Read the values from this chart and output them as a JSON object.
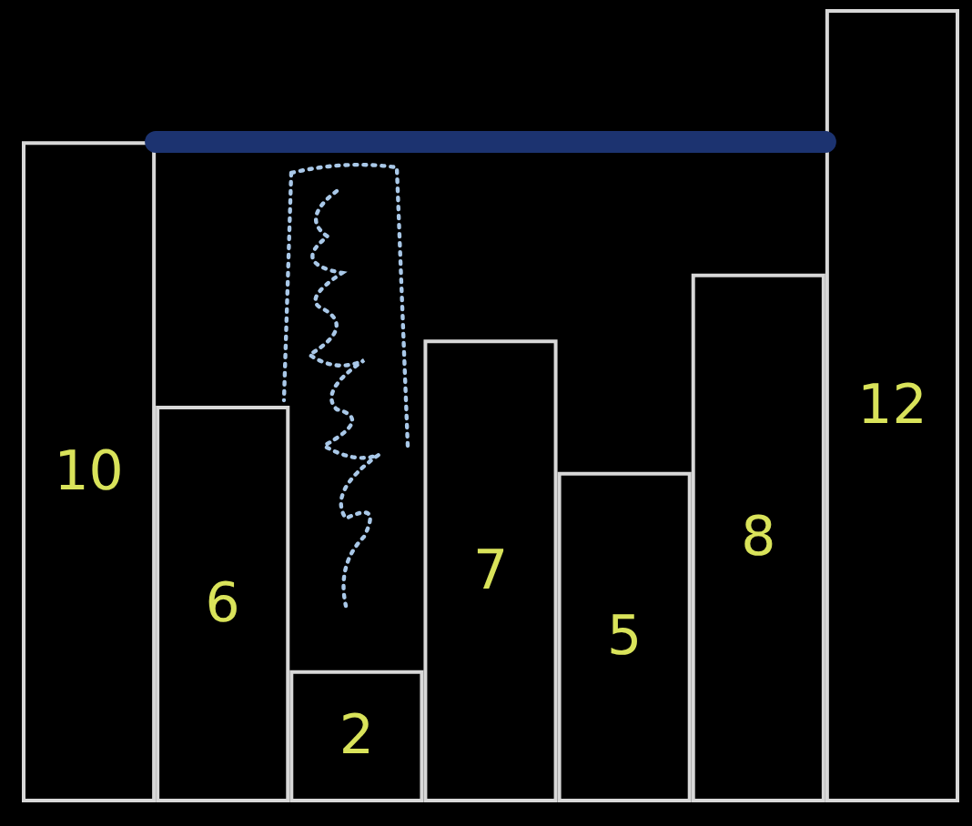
{
  "chart_data": {
    "type": "bar",
    "categories": [
      null,
      null,
      null,
      null,
      null,
      null,
      null
    ],
    "values": [
      10,
      6,
      2,
      7,
      5,
      8,
      12
    ],
    "color": "#000000",
    "data_labels": true,
    "ylim": [
      0,
      12
    ],
    "tick_labels": false,
    "grid": false,
    "ref_lines": [
      {
        "axis": "y",
        "value": 10,
        "label": null,
        "color": "#1c3370"
      }
    ]
  }
}
